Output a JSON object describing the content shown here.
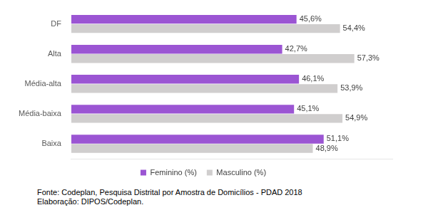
{
  "chart_data": {
    "type": "bar",
    "orientation": "horizontal",
    "categories": [
      "DF",
      "Alta",
      "Média-alta",
      "Média-baixa",
      "Baixa"
    ],
    "series": [
      {
        "name": "Feminino (%)",
        "color": "#9b55d3",
        "values": [
          45.6,
          42.7,
          46.1,
          45.1,
          51.1
        ],
        "value_labels": [
          "45,6%",
          "42,7%",
          "46,1%",
          "45,1%",
          "51,1%"
        ]
      },
      {
        "name": "Masculino (%)",
        "color": "#d0cece",
        "values": [
          54.4,
          57.3,
          53.9,
          54.9,
          48.9
        ],
        "value_labels": [
          "54,4%",
          "57,3%",
          "53,9%",
          "54,9%",
          "48,9%"
        ]
      }
    ],
    "xlim": [
      0,
      65
    ],
    "grid": false,
    "legend": "bottom",
    "data_labels": true,
    "tick_labels": "y",
    "source": [
      "Fonte: Codeplan, Pesquisa Distrital por Amostra de Domicílios - PDAD 2018",
      "Elaboração: DIPOS/Codeplan."
    ]
  }
}
